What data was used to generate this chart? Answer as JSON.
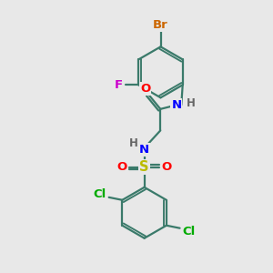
{
  "bg_color": "#e8e8e8",
  "bond_color": "#3a7a6a",
  "bond_width": 1.6,
  "atom_colors": {
    "Br": "#cc6600",
    "F": "#cc00cc",
    "O": "#ff0000",
    "N": "#0000ff",
    "S": "#bbbb00",
    "Cl": "#00aa00",
    "H": "#666666",
    "C": "#3a7a6a"
  },
  "font_size": 8.5,
  "fig_size": [
    3.0,
    3.0
  ],
  "dpi": 100
}
